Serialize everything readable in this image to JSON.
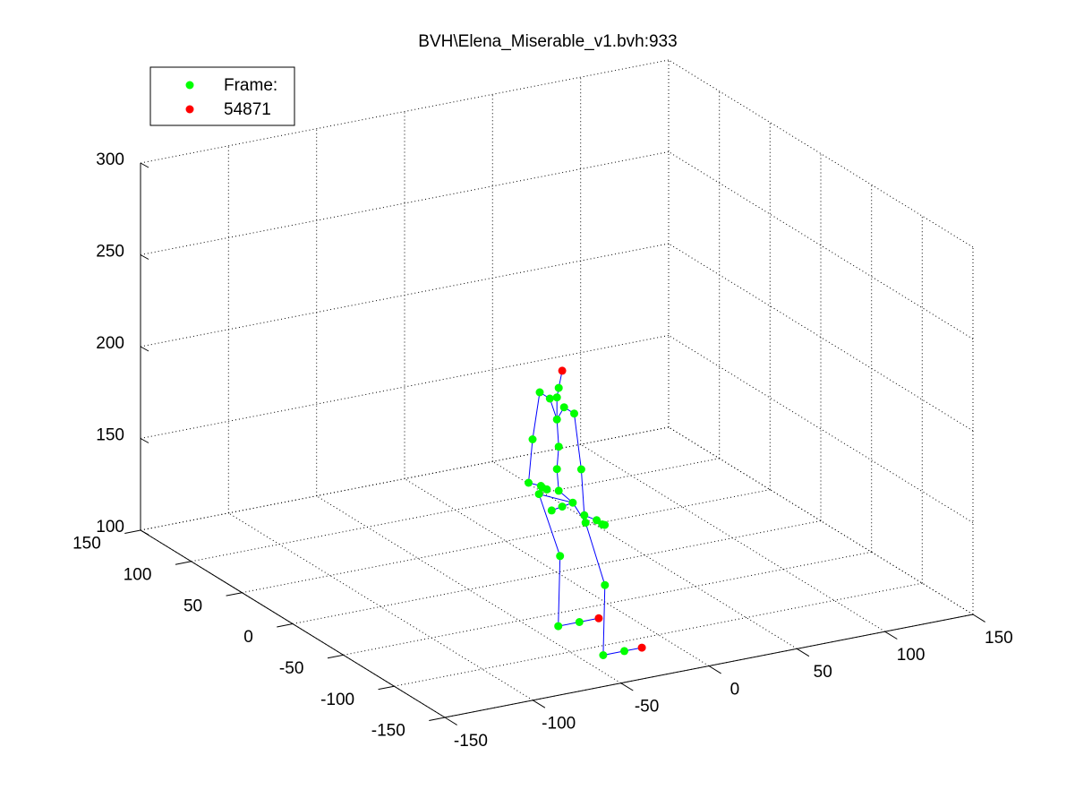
{
  "figure": {
    "title": "BVH\\Elena_Miserable_v1.bvh:933"
  },
  "chart_data": {
    "type": "scatter",
    "view": "3d",
    "title": "BVH\\Elena_Miserable_v1.bvh:933",
    "xlabel": "",
    "ylabel": "",
    "zlabel": "",
    "xlim": [
      -150,
      150
    ],
    "ylim": [
      -150,
      150
    ],
    "zlim": [
      100,
      300
    ],
    "x_ticks": [
      -150,
      -100,
      -50,
      0,
      50,
      100,
      150
    ],
    "y_ticks": [
      -150,
      -100,
      -50,
      0,
      50,
      100,
      150
    ],
    "z_ticks": [
      100,
      150,
      200,
      250,
      300
    ],
    "x_tick_labels": [
      "-150",
      "-100",
      "-50",
      "0",
      "50",
      "100",
      "150"
    ],
    "y_tick_labels": [
      "-150",
      "-100",
      "-50",
      "0",
      "50",
      "100",
      "150"
    ],
    "z_tick_labels": [
      "100",
      "150",
      "200",
      "250",
      "300"
    ],
    "grid": true,
    "legend": {
      "placement": "top-left",
      "entries": [
        {
          "label": "Frame:",
          "color": "#00ff00"
        },
        {
          "label": "54871",
          "color": "#ff0000"
        }
      ]
    },
    "colors": {
      "joint": "#00ff00",
      "end_site": "#ff0000",
      "bone": "#0000ff"
    },
    "joints": [
      {
        "x": 12,
        "y": 5,
        "z": 134,
        "end": false
      },
      {
        "x": 6,
        "y": 5,
        "z": 133,
        "end": false
      },
      {
        "x": 0,
        "y": 5,
        "z": 132,
        "end": false
      },
      {
        "x": 6,
        "y": 28,
        "z": 132,
        "end": false
      },
      {
        "x": 18,
        "y": 28,
        "z": 96,
        "end": false
      },
      {
        "x": 17,
        "y": 28,
        "z": 58,
        "end": false
      },
      {
        "x": 29,
        "y": 28,
        "z": 58,
        "end": false
      },
      {
        "x": 40,
        "y": 28,
        "z": 58,
        "end": true
      },
      {
        "x": 6,
        "y": -18,
        "z": 132,
        "end": false
      },
      {
        "x": 17,
        "y": -18,
        "z": 96,
        "end": false
      },
      {
        "x": 16,
        "y": -18,
        "z": 58,
        "end": false
      },
      {
        "x": 28,
        "y": -18,
        "z": 58,
        "end": false
      },
      {
        "x": 38,
        "y": -18,
        "z": 58,
        "end": true
      },
      {
        "x": 4,
        "y": 5,
        "z": 142,
        "end": false
      },
      {
        "x": 3,
        "y": 5,
        "z": 154,
        "end": false
      },
      {
        "x": 4,
        "y": 5,
        "z": 166,
        "end": false
      },
      {
        "x": 3,
        "y": 5,
        "z": 181,
        "end": false
      },
      {
        "x": 3,
        "y": 5,
        "z": 193,
        "end": false
      },
      {
        "x": 4,
        "y": 5,
        "z": 198,
        "end": false
      },
      {
        "x": 6,
        "y": 5,
        "z": 207,
        "end": true
      },
      {
        "x": 3,
        "y": 12,
        "z": 190,
        "end": false
      },
      {
        "x": 3,
        "y": 22,
        "z": 190,
        "end": false
      },
      {
        "x": 3,
        "y": 29,
        "z": 162,
        "end": false
      },
      {
        "x": 3,
        "y": 33,
        "z": 137,
        "end": false
      },
      {
        "x": 3,
        "y": -2,
        "z": 190,
        "end": false
      },
      {
        "x": 3,
        "y": -12,
        "z": 190,
        "end": false
      },
      {
        "x": 3,
        "y": -19,
        "z": 162,
        "end": false
      },
      {
        "x": 3,
        "y": -22,
        "z": 138,
        "end": false
      },
      {
        "x": 10,
        "y": 33,
        "z": 134,
        "end": false
      },
      {
        "x": 12,
        "y": 35,
        "z": 132,
        "end": false
      },
      {
        "x": 14,
        "y": 34,
        "z": 131,
        "end": false
      },
      {
        "x": 10,
        "y": -22,
        "z": 134,
        "end": false
      },
      {
        "x": 12,
        "y": -24,
        "z": 132,
        "end": false
      },
      {
        "x": 14,
        "y": -23,
        "z": 131,
        "end": false
      }
    ]
  }
}
